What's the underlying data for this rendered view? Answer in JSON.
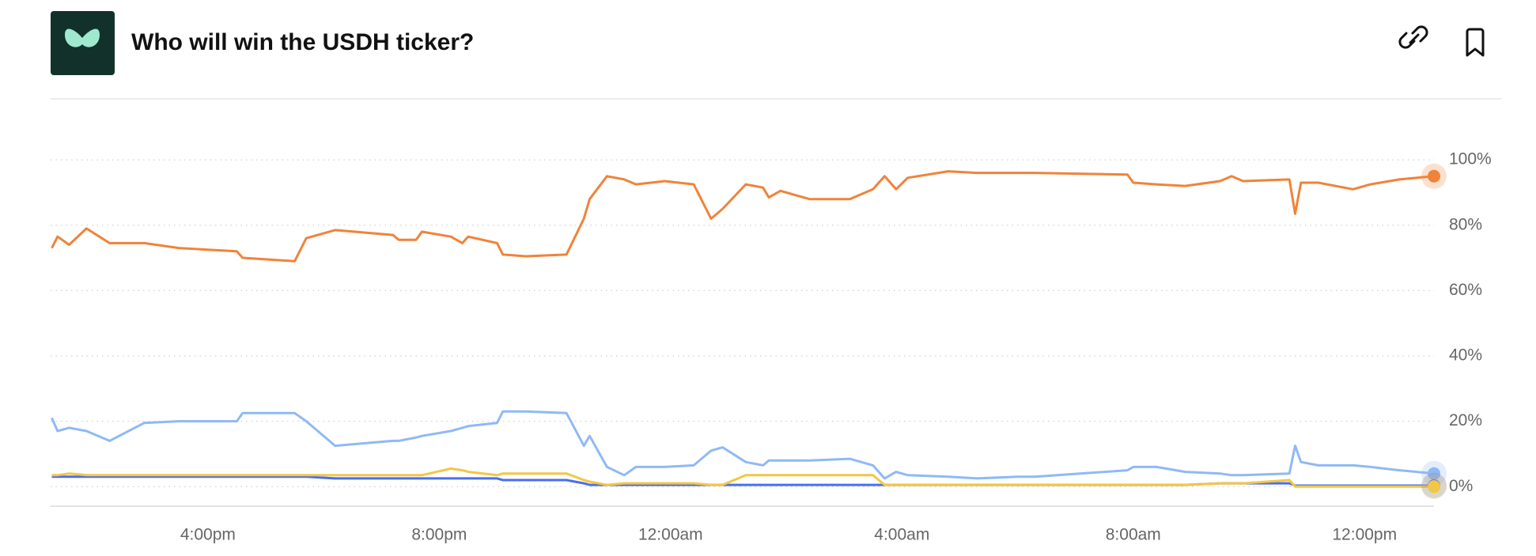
{
  "chart_data": {
    "type": "line",
    "title": "Who will win the USDH ticker?",
    "x": [
      13.3,
      13.4,
      13.6,
      13.9,
      14.3,
      14.9,
      15.5,
      16.5,
      16.6,
      17.5,
      17.7,
      18.2,
      19.2,
      19.3,
      19.6,
      19.7,
      20.2,
      20.4,
      20.5,
      21.0,
      21.1,
      21.5,
      22.2,
      22.5,
      22.6,
      22.9,
      23.2,
      23.4,
      23.9,
      24.4,
      24.7,
      24.9,
      25.3,
      25.6,
      25.7,
      25.9,
      26.4,
      27.1,
      27.5,
      27.7,
      27.9,
      28.1,
      28.8,
      29.3,
      30.0,
      30.3,
      31.9,
      32.0,
      32.4,
      32.9,
      33.5,
      33.7,
      33.9,
      34.7,
      34.8,
      34.9,
      35.2,
      35.8,
      36.1,
      36.6,
      37.2
    ],
    "series": [
      {
        "color": "#f0833a",
        "values": [
          73,
          76.5,
          74,
          79,
          74.5,
          74.5,
          73,
          72,
          70,
          69,
          76,
          78.5,
          77,
          75.5,
          75.5,
          78,
          76.5,
          74.5,
          76.5,
          74.5,
          71,
          70.5,
          71,
          82,
          88,
          95,
          94,
          92.5,
          93.5,
          92.5,
          82,
          85,
          92.5,
          91.5,
          88.5,
          90.5,
          88,
          88,
          91,
          95,
          91,
          94.5,
          96.5,
          96,
          96,
          96,
          95.5,
          93,
          92.5,
          92,
          93.5,
          95,
          93.5,
          94,
          83.5,
          93,
          93,
          91,
          92.5,
          94,
          95
        ]
      },
      {
        "color": "#8fb9f5",
        "values": [
          21,
          17,
          18,
          17,
          14,
          19.5,
          20,
          20,
          22.5,
          22.5,
          20,
          12.5,
          14,
          14,
          15,
          15.5,
          17,
          18,
          18.5,
          19.5,
          23,
          23,
          22.5,
          12.5,
          15.5,
          6,
          3.5,
          6,
          6,
          6.5,
          11,
          12,
          7.5,
          6.5,
          8,
          8,
          8,
          8.5,
          6.5,
          2.5,
          4.5,
          3.5,
          3,
          2.5,
          3,
          3,
          5,
          6,
          6,
          4.5,
          4,
          3.5,
          3.5,
          4,
          12.5,
          7.5,
          6.5,
          6.5,
          6,
          5,
          4
        ]
      },
      {
        "color": "#4a6ef0",
        "values": [
          3,
          3,
          3,
          3,
          3,
          3,
          3,
          3,
          3,
          3,
          3,
          2.5,
          2.5,
          2.5,
          2.5,
          2.5,
          2.5,
          2.5,
          2.5,
          2.5,
          2,
          2,
          2,
          1,
          0.5,
          0.5,
          0.5,
          0.5,
          0.5,
          0.5,
          0.5,
          0.5,
          0.5,
          0.5,
          0.5,
          0.5,
          0.5,
          0.5,
          0.5,
          0.5,
          0.5,
          0.5,
          0.5,
          0.5,
          0.5,
          0.5,
          0.5,
          0.5,
          0.5,
          0.5,
          1,
          1,
          1,
          1,
          0.3,
          0.3,
          0.3,
          0.3,
          0.3,
          0.3,
          0.3
        ]
      },
      {
        "color": "#f2c744",
        "values": [
          3.5,
          3.5,
          4,
          3.5,
          3.5,
          3.5,
          3.5,
          3.5,
          3.5,
          3.5,
          3.5,
          3.5,
          3.5,
          3.5,
          3.5,
          3.5,
          5.5,
          5,
          4.5,
          3.5,
          4,
          4,
          4,
          2,
          1.5,
          0.5,
          1,
          1,
          1,
          1,
          0.5,
          0.5,
          3.5,
          3.5,
          3.5,
          3.5,
          3.5,
          3.5,
          3.5,
          0.5,
          0.5,
          0.5,
          0.5,
          0.5,
          0.5,
          0.5,
          0.5,
          0.5,
          0.5,
          0.5,
          1,
          1,
          1,
          2,
          0,
          0,
          0,
          0,
          0,
          0,
          0
        ]
      }
    ],
    "xlim": [
      13.28,
      37.2
    ],
    "xticks": [
      {
        "value": 16,
        "label": "4:00pm"
      },
      {
        "value": 20,
        "label": "8:00pm"
      },
      {
        "value": 24,
        "label": "12:00am"
      },
      {
        "value": 28,
        "label": "4:00am"
      },
      {
        "value": 32,
        "label": "8:00am"
      },
      {
        "value": 36,
        "label": "12:00pm"
      }
    ],
    "ylim": [
      -6,
      116
    ],
    "yticks": [
      {
        "value": 0,
        "label": "0%"
      },
      {
        "value": 20,
        "label": "20%"
      },
      {
        "value": 40,
        "label": "40%"
      },
      {
        "value": 60,
        "label": "60%"
      },
      {
        "value": 80,
        "label": "80%"
      },
      {
        "value": 100,
        "label": "100%"
      }
    ],
    "grid": true
  }
}
